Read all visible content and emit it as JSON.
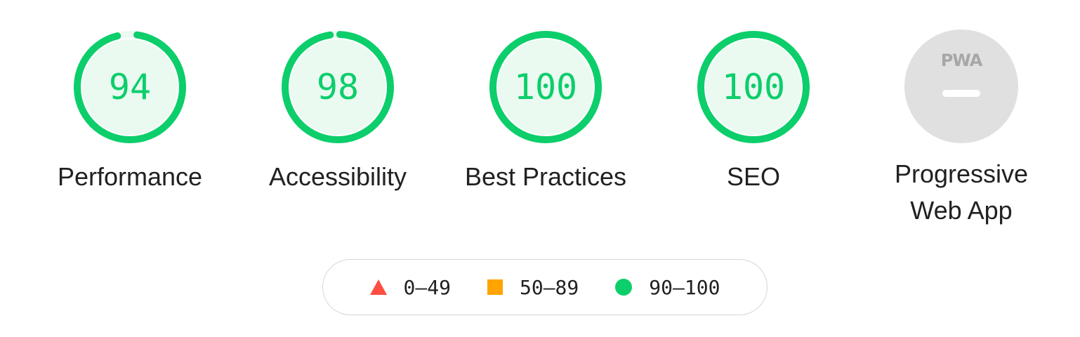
{
  "categories": [
    {
      "id": "performance",
      "label": "Performance",
      "score": 94,
      "display": "94"
    },
    {
      "id": "accessibility",
      "label": "Accessibility",
      "score": 98,
      "display": "98"
    },
    {
      "id": "best-practices",
      "label": "Best Practices",
      "score": 100,
      "display": "100"
    },
    {
      "id": "seo",
      "label": "SEO",
      "score": 100,
      "display": "100"
    },
    {
      "id": "pwa",
      "label": "Progressive Web App",
      "badge": "PWA",
      "icon": "pwa-dash-icon"
    }
  ],
  "legend": [
    {
      "range": "0–49",
      "icon": "triangle-icon",
      "color": "#ff4e42"
    },
    {
      "range": "50–89",
      "icon": "square-icon",
      "color": "#ffa400"
    },
    {
      "range": "90–100",
      "icon": "circle-icon",
      "color": "#0cce6b"
    }
  ],
  "colors": {
    "pass": "#0cce6b",
    "pass_fill": "#eafaf1",
    "track": "#ecf9f1",
    "pwa_gray": "#e0e0e0",
    "text": "#212121"
  }
}
